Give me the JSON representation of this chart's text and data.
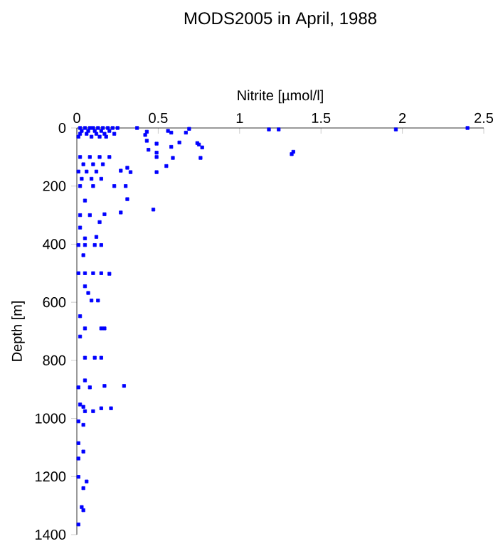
{
  "chart_data": {
    "type": "scatter",
    "title": "MODS2005 in April, 1988",
    "xlabel": "Nitrite [µmol/l]",
    "ylabel": "Depth [m]",
    "xlim": [
      0,
      2.5
    ],
    "xticks": [
      0,
      0.5,
      1,
      1.5,
      2,
      2.5
    ],
    "ylim": [
      1400,
      0
    ],
    "yticks": [
      0,
      200,
      400,
      600,
      800,
      1000,
      1200,
      1400
    ],
    "marker": "square",
    "series": [
      {
        "color": "#0000ff",
        "x": [
          2.4,
          1.96,
          1.18,
          1.24,
          0.69,
          0.67,
          0.56,
          0.58,
          0.43,
          0.42,
          0.37,
          0.02,
          0.05,
          0.08,
          0.1,
          0.13,
          0.16,
          0.19,
          0.22,
          0.25,
          0.03,
          0.07,
          0.11,
          0.15,
          0.2,
          0.02,
          0.06,
          0.12,
          0.17,
          0.23,
          0.01,
          0.09,
          0.14,
          0.18,
          1.33,
          1.32,
          0.74,
          0.75,
          0.77,
          0.76,
          0.63,
          0.58,
          0.49,
          0.49,
          0.49,
          0.49,
          0.43,
          0.44,
          0.55,
          0.59,
          0.31,
          0.33,
          0.27,
          0.02,
          0.08,
          0.14,
          0.2,
          0.04,
          0.1,
          0.16,
          0.01,
          0.06,
          0.12,
          0.03,
          0.09,
          0.15,
          0.3,
          0.23,
          0.1,
          0.02,
          0.31,
          0.05,
          0.47,
          0.27,
          0.17,
          0.08,
          0.02,
          0.14,
          0.02,
          0.05,
          0.12,
          0.15,
          0.11,
          0.05,
          0.01,
          0.04,
          0.2,
          0.15,
          0.1,
          0.05,
          0.01,
          0.05,
          0.07,
          0.13,
          0.09,
          0.02,
          0.05,
          0.17,
          0.15,
          0.02,
          0.15,
          0.11,
          0.05,
          0.05,
          0.29,
          0.17,
          0.08,
          0.01,
          0.02,
          0.04,
          0.21,
          0.15,
          0.1,
          0.05,
          0.01,
          0.04,
          0.01,
          0.04,
          0.01,
          0.01,
          0.06,
          0.04,
          0.03,
          0.04,
          0.01
        ],
        "values": [
          0,
          5,
          5,
          5,
          3,
          16,
          10,
          16,
          13,
          24,
          0,
          0,
          0,
          0,
          0,
          0,
          0,
          0,
          0,
          0,
          10,
          10,
          10,
          10,
          10,
          20,
          20,
          20,
          20,
          20,
          30,
          30,
          30,
          30,
          82,
          90,
          52,
          57,
          67,
          103,
          50,
          65,
          54,
          85,
          100,
          152,
          44,
          75,
          131,
          103,
          137,
          152,
          147,
          100,
          100,
          100,
          100,
          125,
          125,
          125,
          150,
          150,
          150,
          175,
          175,
          175,
          200,
          200,
          200,
          200,
          245,
          250,
          281,
          291,
          297,
          300,
          300,
          324,
          343,
          380,
          375,
          403,
          403,
          403,
          403,
          438,
          502,
          500,
          500,
          500,
          500,
          545,
          568,
          594,
          594,
          648,
          690,
          690,
          690,
          718,
          791,
          791,
          791,
          869,
          888,
          888,
          893,
          893,
          952,
          960,
          965,
          965,
          975,
          975,
          1010,
          1022,
          1085,
          1114,
          1138,
          1201,
          1217,
          1240,
          1305,
          1316,
          1365
        ]
      }
    ]
  }
}
